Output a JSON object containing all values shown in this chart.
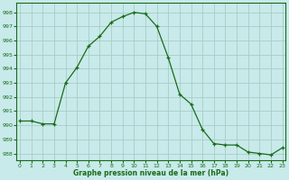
{
  "x": [
    0,
    1,
    2,
    3,
    4,
    5,
    6,
    7,
    8,
    9,
    10,
    11,
    12,
    13,
    14,
    15,
    16,
    17,
    18,
    19,
    20,
    21,
    22,
    23
  ],
  "y": [
    990.3,
    990.3,
    990.1,
    990.1,
    993.0,
    994.1,
    995.6,
    996.3,
    997.3,
    997.7,
    998.0,
    997.9,
    997.0,
    994.8,
    992.2,
    991.5,
    989.7,
    988.7,
    988.6,
    988.6,
    988.1,
    988.0,
    987.9,
    988.4
  ],
  "line_color": "#1a6b1a",
  "marker": "+",
  "marker_color": "#1a6b1a",
  "bg_color": "#c8eaea",
  "grid_color": "#a0c8c0",
  "xlabel": "Graphe pression niveau de la mer (hPa)",
  "ylim": [
    987.5,
    998.7
  ],
  "yticks": [
    988,
    989,
    990,
    991,
    992,
    993,
    994,
    995,
    996,
    997,
    998
  ],
  "xlim": [
    -0.3,
    23.3
  ],
  "xticks": [
    0,
    1,
    2,
    3,
    4,
    5,
    6,
    7,
    8,
    9,
    10,
    11,
    12,
    13,
    14,
    15,
    16,
    17,
    18,
    19,
    20,
    21,
    22,
    23
  ]
}
